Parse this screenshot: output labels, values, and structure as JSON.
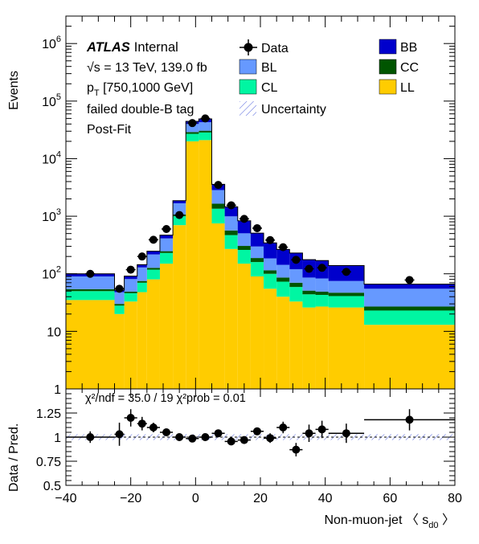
{
  "chart_data": [
    {
      "type": "stacked-histogram",
      "xlim": [
        -40,
        80
      ],
      "ylim": [
        1,
        3000000
      ],
      "yscale": "log",
      "ylabel": "Events",
      "y_tick_labels": [
        "1",
        "10",
        "10^2",
        "10^3",
        "10^4",
        "10^5",
        "10^6"
      ],
      "x_edges": [
        -40,
        -25,
        -22,
        -18,
        -15,
        -11,
        -7,
        -3,
        1,
        5,
        9,
        13,
        17,
        21,
        25,
        29,
        33,
        37,
        41,
        52,
        80
      ],
      "stack_order": [
        "LL",
        "CL",
        "CC",
        "BL",
        "BB"
      ],
      "series": [
        {
          "name": "LL",
          "color": "#ffcc00",
          "values": [
            35,
            20,
            33,
            48,
            80,
            150,
            700,
            20000,
            21000,
            750,
            270,
            150,
            90,
            55,
            40,
            33,
            26,
            27,
            26,
            13
          ]
        },
        {
          "name": "CL",
          "color": "#00f6a2",
          "values": [
            15,
            8,
            13,
            22,
            38,
            80,
            300,
            7000,
            7500,
            600,
            200,
            110,
            70,
            45,
            33,
            26,
            18,
            16,
            15,
            10
          ]
        },
        {
          "name": "CC",
          "color": "#005500",
          "values": [
            4,
            2,
            3,
            5,
            9,
            17,
            70,
            2000,
            2100,
            300,
            95,
            45,
            28,
            15,
            13,
            11,
            7,
            6,
            6,
            4
          ]
        },
        {
          "name": "BL",
          "color": "#6699ff",
          "values": [
            36,
            18,
            32,
            54,
            90,
            165,
            610,
            11000,
            12400,
            1200,
            430,
            200,
            110,
            70,
            57,
            50,
            35,
            34,
            28,
            28
          ]
        },
        {
          "name": "BB",
          "color": "#0000cc",
          "values": [
            10,
            4,
            10,
            15,
            30,
            58,
            180,
            4500,
            6000,
            730,
            460,
            330,
            210,
            160,
            122,
            110,
            90,
            87,
            64,
            11
          ]
        }
      ],
      "data_points": {
        "name": "Data",
        "x": [
          -32.5,
          -23.5,
          -20,
          -16.5,
          -13,
          -9,
          -5,
          -1,
          3,
          7,
          11,
          15,
          19,
          23,
          27,
          31,
          35,
          39,
          46.5,
          66
        ],
        "y": [
          100,
          55,
          118,
          200,
          390,
          600,
          1050,
          41500,
          50000,
          3500,
          1550,
          900,
          620,
          385,
          290,
          175,
          122,
          127,
          108,
          78
        ]
      },
      "legend": [
        {
          "label": "Data",
          "style": "marker"
        },
        {
          "label": "BL",
          "color": "#6699ff"
        },
        {
          "label": "CL",
          "color": "#00f6a2"
        },
        {
          "label": "Uncertainty",
          "style": "hatch",
          "color": "#5566dd"
        },
        {
          "label": "BB",
          "color": "#0000cc"
        },
        {
          "label": "CC",
          "color": "#005500"
        },
        {
          "label": "LL",
          "color": "#ffcc00"
        }
      ],
      "annotations": {
        "atlas": "ATLAS",
        "internal": "Internal",
        "energy": "√s = 13 TeV, 139.0 fb",
        "pt_p": "p",
        "pt_sub": "T",
        "pt_range": " [750,1000 GeV]",
        "tag": "failed double-B tag",
        "fit": "Post-Fit"
      }
    },
    {
      "type": "ratio",
      "xlim": [
        -40,
        80
      ],
      "ylim": [
        0.5,
        1.5
      ],
      "ylabel": "Data / Pred.",
      "y_tick_labels": [
        "0.5",
        "0.75",
        "1",
        "1.25"
      ],
      "x_tick_labels": [
        "−40",
        "−20",
        "0",
        "20",
        "40",
        "60",
        "80"
      ],
      "xlabel": "Non-muon-jet 〈 s",
      "xlabel_sub": "d0",
      "xlabel_end": " 〉",
      "chi2_text": "χ²/ndf = 35.0 / 19    χ²prob = 0.01",
      "reference_line": 1,
      "points": {
        "x": [
          -32.5,
          -23.5,
          -20,
          -16.5,
          -13,
          -9,
          -5,
          -1,
          3,
          7,
          11,
          15,
          19,
          23,
          27,
          31,
          35,
          39,
          46.5,
          66
        ],
        "y": [
          1.0,
          1.03,
          1.2,
          1.14,
          1.1,
          1.05,
          1.0,
          0.985,
          1.0,
          1.04,
          0.955,
          0.97,
          1.06,
          0.99,
          1.1,
          0.87,
          1.04,
          1.08,
          1.04,
          1.18
        ],
        "yerr": [
          0.06,
          0.12,
          0.09,
          0.07,
          0.05,
          0.03,
          0.02,
          0.01,
          0.01,
          0.02,
          0.03,
          0.03,
          0.04,
          0.05,
          0.06,
          0.07,
          0.09,
          0.09,
          0.1,
          0.11
        ]
      }
    }
  ]
}
